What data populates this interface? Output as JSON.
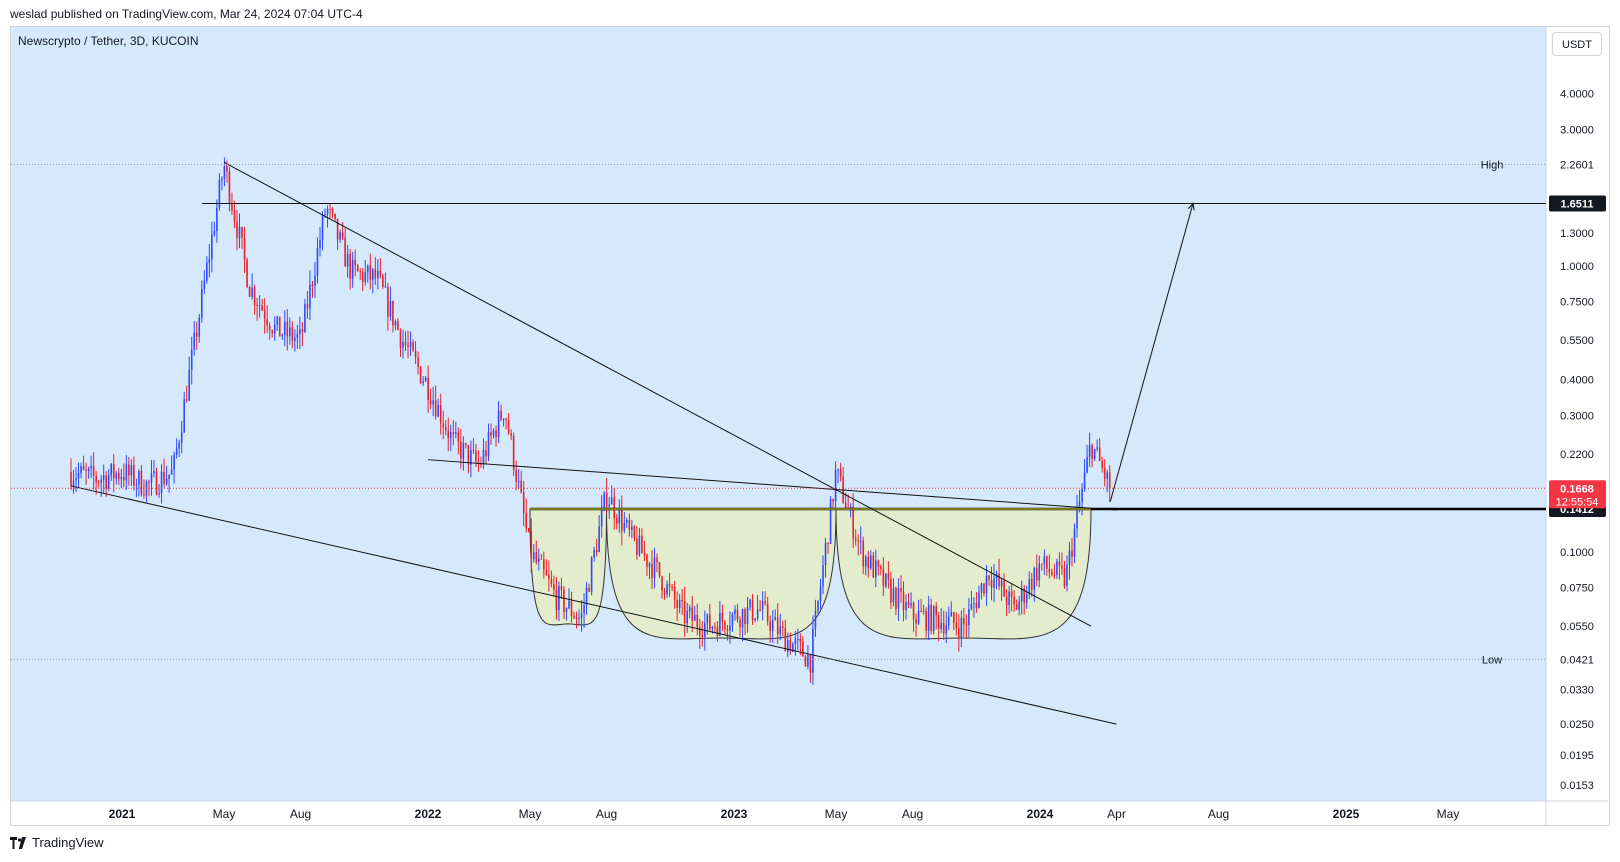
{
  "header": {
    "published": "weslad published on TradingView.com, Mar 24, 2024 07:04 UTC-4"
  },
  "symbol": {
    "title": "Newscrypto / Tether, 3D, KUCOIN"
  },
  "currency": "USDT",
  "footer": {
    "brand": "TradingView",
    "icon": "tradingview-logo-icon"
  },
  "colors": {
    "background": "#d6e8fb",
    "up_candle": "#2c4bff",
    "down_candle": "#e8202a",
    "cup_fill": "#e6ecc5",
    "neckline": "#7a7a1a",
    "last_price": "#f23645"
  },
  "chart_data": {
    "type": "candlestick",
    "title": "Newscrypto / Tether, 3D, KUCOIN",
    "y_scale": "log",
    "y_ticks": [
      0.0153,
      0.0195,
      0.025,
      0.033,
      0.0421,
      0.055,
      0.075,
      0.1,
      0.1412,
      0.1668,
      0.22,
      0.3,
      0.4,
      0.55,
      0.75,
      1.0,
      1.3,
      1.6511,
      2.2601,
      3.0,
      4.0
    ],
    "x_ticks": [
      "2021",
      "May",
      "Aug",
      "2022",
      "May",
      "Aug",
      "2023",
      "May",
      "Aug",
      "2024",
      "Apr",
      "Aug",
      "2025",
      "May"
    ],
    "price_labels": {
      "high": {
        "label": "High",
        "value": "2.2601"
      },
      "low": {
        "label": "Low",
        "value": "0.0421"
      },
      "target": {
        "value": "1.6511"
      },
      "last": {
        "value": "0.1668",
        "countdown": "12:55:54"
      },
      "neckline": {
        "value": "0.1412"
      }
    },
    "price_path": [
      [
        "2020-11",
        0.19
      ],
      [
        "2020-12",
        0.18
      ],
      [
        "2021-01",
        0.19
      ],
      [
        "2021-02",
        0.17
      ],
      [
        "2021-03",
        0.19
      ],
      [
        "2021-04",
        0.65
      ],
      [
        "2021-05",
        2.2601
      ],
      [
        "2021-06",
        0.85
      ],
      [
        "2021-07",
        0.6
      ],
      [
        "2021-08",
        0.55
      ],
      [
        "2021-09",
        1.6
      ],
      [
        "2021-10",
        0.95
      ],
      [
        "2021-11",
        0.9
      ],
      [
        "2021-12",
        0.55
      ],
      [
        "2022-01",
        0.38
      ],
      [
        "2022-02",
        0.24
      ],
      [
        "2022-03",
        0.2
      ],
      [
        "2022-04",
        0.32
      ],
      [
        "2022-05",
        0.1
      ],
      [
        "2022-06",
        0.07
      ],
      [
        "2022-07",
        0.058
      ],
      [
        "2022-08",
        0.16
      ],
      [
        "2022-09",
        0.11
      ],
      [
        "2022-10",
        0.085
      ],
      [
        "2022-11",
        0.06
      ],
      [
        "2022-12",
        0.055
      ],
      [
        "2023-01",
        0.06
      ],
      [
        "2023-02",
        0.063
      ],
      [
        "2023-03",
        0.05
      ],
      [
        "2023-04",
        0.0421
      ],
      [
        "2023-05",
        0.19
      ],
      [
        "2023-06",
        0.1
      ],
      [
        "2023-07",
        0.075
      ],
      [
        "2023-08",
        0.06
      ],
      [
        "2023-09",
        0.058
      ],
      [
        "2023-10",
        0.055
      ],
      [
        "2023-11",
        0.085
      ],
      [
        "2023-12",
        0.063
      ],
      [
        "2024-01",
        0.09
      ],
      [
        "2024-02",
        0.08
      ],
      [
        "2024-03",
        0.24
      ],
      [
        "2024-03-24",
        0.1668
      ]
    ],
    "annotations": [
      {
        "type": "horizontal",
        "name": "neckline",
        "price": 0.1412
      },
      {
        "type": "horizontal",
        "name": "target",
        "price": 1.6511
      },
      {
        "type": "trendline",
        "name": "falling-resistance",
        "from": [
          "2021-05",
          2.3
        ],
        "to": [
          "2024-03",
          0.055
        ]
      },
      {
        "type": "trendline",
        "name": "falling-support",
        "from": [
          "2020-11",
          0.17
        ],
        "to": [
          "2024-04",
          0.025
        ]
      },
      {
        "type": "trendline",
        "name": "flat-resistance",
        "from": [
          "2022-01",
          0.21
        ],
        "to": [
          "2024-04",
          0.14
        ]
      },
      {
        "type": "arrow",
        "name": "target-projection",
        "from": [
          "2024-03-24",
          0.15
        ],
        "to": [
          "2024-07",
          1.6511
        ]
      },
      {
        "type": "arc",
        "name": "cup-1",
        "from": "2022-05",
        "to": "2022-08",
        "bottom": 0.056
      },
      {
        "type": "arc",
        "name": "cup-2",
        "from": "2022-08",
        "to": "2023-05",
        "bottom": 0.05
      },
      {
        "type": "arc",
        "name": "cup-3",
        "from": "2023-05",
        "to": "2024-03",
        "bottom": 0.05
      }
    ]
  }
}
